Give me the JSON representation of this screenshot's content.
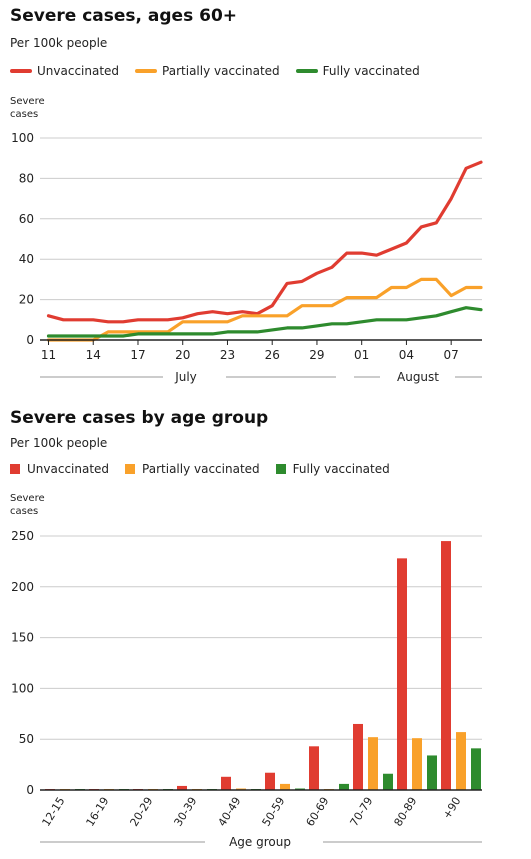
{
  "colors": {
    "unvaccinated": "#e03c31",
    "partial": "#f9a12a",
    "full": "#2e8b2e",
    "grid": "#cccccc",
    "axis": "#222222"
  },
  "chart_data": [
    {
      "type": "line",
      "title": "Severe cases, ages 60+",
      "subtitle": "Per 100k people",
      "ylabel": [
        "Severe",
        "cases"
      ],
      "ylim": [
        0,
        100
      ],
      "yticks": [
        0,
        20,
        40,
        60,
        80,
        100
      ],
      "xticks": [
        "11",
        "14",
        "17",
        "20",
        "23",
        "26",
        "29",
        "01",
        "04",
        "07"
      ],
      "month_labels": [
        "July",
        "August"
      ],
      "series": [
        {
          "name": "Unvaccinated",
          "color_key": "unvaccinated",
          "values": [
            12,
            10,
            10,
            10,
            9,
            9,
            10,
            10,
            10,
            11,
            13,
            14,
            13,
            14,
            13,
            17,
            28,
            29,
            33,
            36,
            43,
            43,
            42,
            45,
            48,
            56,
            58,
            70,
            85,
            88
          ]
        },
        {
          "name": "Partially vaccinated",
          "color_key": "partial",
          "values": [
            0,
            0,
            0,
            0,
            4,
            4,
            4,
            4,
            4,
            9,
            9,
            9,
            9,
            12,
            12,
            12,
            12,
            17,
            17,
            17,
            21,
            21,
            21,
            26,
            26,
            30,
            30,
            22,
            26,
            26
          ]
        },
        {
          "name": "Fully vaccinated",
          "color_key": "full",
          "values": [
            2,
            2,
            2,
            2,
            2,
            2,
            3,
            3,
            3,
            3,
            3,
            3,
            4,
            4,
            4,
            5,
            6,
            6,
            7,
            8,
            8,
            9,
            10,
            10,
            10,
            11,
            12,
            14,
            16,
            15
          ]
        }
      ]
    },
    {
      "type": "bar",
      "title": "Severe cases by age group",
      "subtitle": "Per 100k people",
      "ylabel": [
        "Severe",
        "cases"
      ],
      "xlabel": "Age group",
      "ylim": [
        0,
        250
      ],
      "yticks": [
        0,
        50,
        100,
        150,
        200,
        250
      ],
      "categories": [
        "12-15",
        "16-19",
        "20-29",
        "30-39",
        "40-49",
        "50-59",
        "60-69",
        "70-79",
        "80-89",
        "+90"
      ],
      "series": [
        {
          "name": "Unvaccinated",
          "color_key": "unvaccinated",
          "values": [
            0,
            0,
            0,
            4,
            13,
            17,
            43,
            65,
            228,
            245
          ]
        },
        {
          "name": "Partially vaccinated",
          "color_key": "partial",
          "values": [
            0,
            0,
            0,
            0,
            1,
            6,
            0,
            52,
            51,
            57
          ]
        },
        {
          "name": "Fully vaccinated",
          "color_key": "full",
          "values": [
            0,
            0,
            0,
            0,
            0,
            1,
            6,
            16,
            34,
            41
          ]
        }
      ]
    }
  ]
}
